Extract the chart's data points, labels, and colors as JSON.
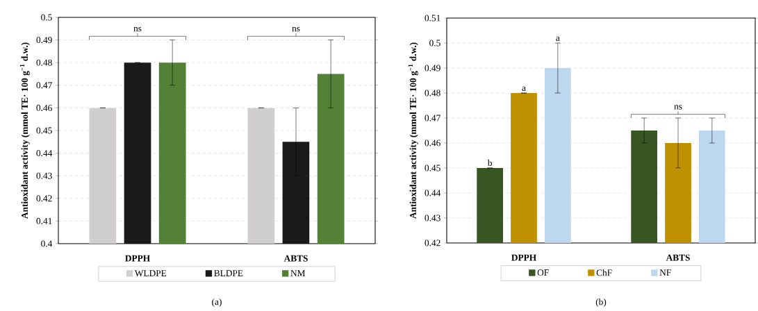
{
  "chart_data": [
    {
      "type": "bar",
      "ylabel": "Antioxidant activity (mmol TE· 100 g$^{−1}$ d.w.)",
      "categories": [
        "DPPH",
        "ABTS"
      ],
      "series": [
        {
          "name": "WLDPE",
          "color": "#d0cece",
          "values": [
            0.46,
            0.46
          ],
          "errors": [
            0,
            0
          ]
        },
        {
          "name": "BLDPE",
          "color": "#1a1a1a",
          "values": [
            0.48,
            0.445
          ],
          "errors": [
            0,
            0.015
          ]
        },
        {
          "name": "NM",
          "color": "#538135",
          "values": [
            0.48,
            0.475
          ],
          "errors": [
            0.01,
            0.015
          ]
        }
      ],
      "ylim": [
        0.4,
        0.5
      ],
      "yticks": [
        0.4,
        0.41,
        0.42,
        0.43,
        0.44,
        0.45,
        0.46,
        0.47,
        0.48,
        0.49,
        0.5
      ],
      "grid": "y",
      "legend": "bottom",
      "annotations": [
        "ns",
        "ns",
        "(a)"
      ]
    },
    {
      "type": "bar",
      "ylabel": "Antioxidant activity (mmol TE· 100 g$^{−1}$ d.w.)",
      "categories": [
        "DPPH",
        "ABTS"
      ],
      "series": [
        {
          "name": "OF",
          "color": "#375623",
          "values": [
            0.45,
            0.465
          ],
          "errors": [
            0,
            0.005
          ],
          "value_labels": [
            "b",
            null
          ]
        },
        {
          "name": "ChF",
          "color": "#bf9000",
          "values": [
            0.48,
            0.46
          ],
          "errors": [
            0,
            0.01
          ],
          "value_labels": [
            "a",
            null
          ]
        },
        {
          "name": "NF",
          "color": "#bdd7ee",
          "values": [
            0.49,
            0.465
          ],
          "errors": [
            0.01,
            0.005
          ],
          "value_labels": [
            "a",
            null
          ]
        }
      ],
      "ylim": [
        0.42,
        0.51
      ],
      "yticks": [
        0.42,
        0.43,
        0.44,
        0.45,
        0.46,
        0.47,
        0.48,
        0.49,
        0.5,
        0.51
      ],
      "grid": "y",
      "legend": "bottom",
      "annotations": [
        {
          "text": "ns",
          "x": "ABTS",
          "y": 0.47
        },
        "(b)"
      ]
    }
  ]
}
